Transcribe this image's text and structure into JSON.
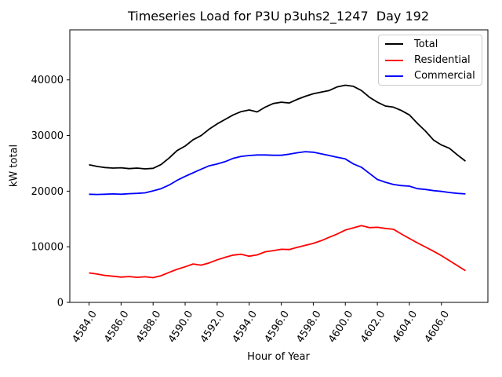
{
  "chart_data": {
    "type": "line",
    "title": "Timeseries Load for P3U p3uhs2_1247  Day 192",
    "xlabel": "Hour of Year",
    "ylabel": "kW total",
    "grid": false,
    "background_color": "#ffffff",
    "xlim": [
      4582.8,
      4608.9
    ],
    "ylim": [
      0,
      49000
    ],
    "xticks": {
      "values": [
        4584,
        4586,
        4588,
        4590,
        4592,
        4594,
        4596,
        4598,
        4600,
        4602,
        4604,
        4606
      ],
      "labels": [
        "4584.0",
        "4586.0",
        "4588.0",
        "4590.0",
        "4592.0",
        "4594.0",
        "4596.0",
        "4598.0",
        "4600.0",
        "4602.0",
        "4604.0",
        "4606.0"
      ]
    },
    "yticks": {
      "values": [
        0,
        10000,
        20000,
        30000,
        40000
      ],
      "labels": [
        "0",
        "10000",
        "20000",
        "30000",
        "40000"
      ]
    },
    "legend": {
      "position": "upper right"
    },
    "x": [
      4584.0,
      4584.5,
      4585.0,
      4585.5,
      4586.0,
      4586.5,
      4587.0,
      4587.5,
      4588.0,
      4588.5,
      4589.0,
      4589.5,
      4590.0,
      4590.5,
      4591.0,
      4591.5,
      4592.0,
      4592.5,
      4593.0,
      4593.5,
      4594.0,
      4594.5,
      4595.0,
      4595.5,
      4596.0,
      4596.5,
      4597.0,
      4597.5,
      4598.0,
      4598.5,
      4599.0,
      4599.5,
      4600.0,
      4600.5,
      4601.0,
      4601.5,
      4602.0,
      4602.5,
      4603.0,
      4603.5,
      4604.0,
      4604.5,
      4605.0,
      4605.5,
      4606.0,
      4606.5,
      4607.0,
      4607.5
    ],
    "series": [
      {
        "name": "Total",
        "color": "#000000",
        "values": [
          24750,
          24450,
          24250,
          24150,
          24200,
          24050,
          24150,
          24000,
          24100,
          24800,
          25950,
          27300,
          28100,
          29250,
          30000,
          31150,
          32100,
          32900,
          33700,
          34300,
          34600,
          34250,
          35100,
          35750,
          36000,
          35850,
          36500,
          37050,
          37500,
          37800,
          38100,
          38750,
          39050,
          38850,
          38100,
          36900,
          36000,
          35300,
          35100,
          34500,
          33700,
          32200,
          30800,
          29200,
          28300,
          27700,
          26500,
          25400
        ]
      },
      {
        "name": "Residential",
        "color": "#ff0000",
        "values": [
          5300,
          5100,
          4850,
          4700,
          4550,
          4650,
          4500,
          4600,
          4450,
          4800,
          5400,
          5950,
          6400,
          6900,
          6700,
          7100,
          7650,
          8100,
          8500,
          8650,
          8300,
          8550,
          9100,
          9300,
          9550,
          9500,
          9900,
          10250,
          10600,
          11100,
          11700,
          12300,
          13000,
          13400,
          13800,
          13450,
          13500,
          13300,
          13150,
          12300,
          11500,
          10700,
          9950,
          9200,
          8400,
          7500,
          6600,
          5700
        ]
      },
      {
        "name": "Commercial",
        "color": "#0000ff",
        "values": [
          19450,
          19400,
          19450,
          19500,
          19450,
          19550,
          19600,
          19700,
          20050,
          20450,
          21100,
          21950,
          22650,
          23300,
          23950,
          24550,
          24900,
          25300,
          25900,
          26250,
          26400,
          26500,
          26500,
          26450,
          26450,
          26650,
          26900,
          27100,
          27000,
          26700,
          26400,
          26100,
          25800,
          24900,
          24300,
          23200,
          22100,
          21600,
          21200,
          21000,
          20900,
          20450,
          20300,
          20100,
          19950,
          19750,
          19600,
          19500
        ]
      }
    ]
  }
}
